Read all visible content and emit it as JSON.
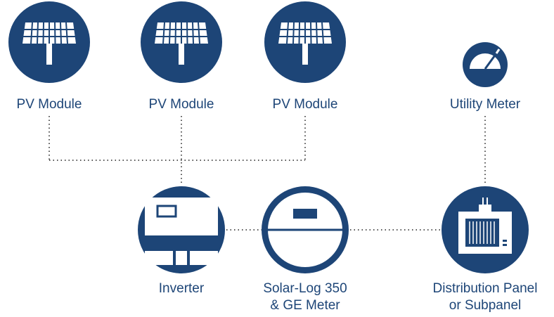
{
  "nodes": [
    {
      "label": [
        "PV Module"
      ]
    },
    {
      "label": [
        "PV Module"
      ]
    },
    {
      "label": [
        "PV Module"
      ]
    },
    {
      "label": [
        "Utility Meter"
      ]
    },
    {
      "label": [
        "Inverter"
      ]
    },
    {
      "label": [
        "Solar-Log 350",
        "& GE Meter"
      ]
    },
    {
      "label": [
        "Distribution Panel",
        "or Subpanel"
      ]
    }
  ]
}
